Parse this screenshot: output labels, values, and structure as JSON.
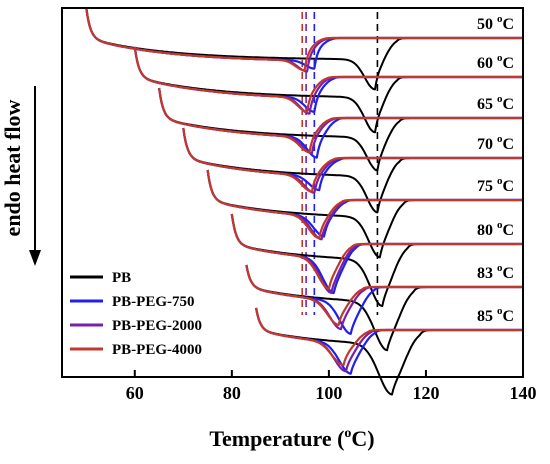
{
  "chart_data": {
    "type": "line",
    "title": "",
    "xlabel": "Temperature (°C)",
    "xlabel_parts": {
      "main": "Temperature (",
      "sup": "o",
      "tail": "C)"
    },
    "ylabel": "endo heat flow",
    "xlim": [
      45,
      140
    ],
    "xticks": [
      60,
      80,
      100,
      120,
      140
    ],
    "yticks_shown": false,
    "grid": false,
    "legend_placement": "bottom-left",
    "series": [
      {
        "name": "PB",
        "color": "#000000",
        "peak_temps": [
          109.5,
          109.5,
          110,
          110,
          110.5,
          111,
          112,
          113
        ]
      },
      {
        "name": "PB-PEG-750",
        "color": "#2020ee",
        "peak_temps": [
          97,
          97,
          97.5,
          98,
          99,
          101,
          104.5,
          104.5
        ]
      },
      {
        "name": "PB-PEG-2000",
        "color": "#7a1fa8",
        "peak_temps": [
          95.5,
          96,
          96.5,
          97,
          98.5,
          100.5,
          102.5,
          103.5
        ]
      },
      {
        "name": "PB-PEG-4000",
        "color": "#c0392b",
        "peak_temps": [
          95,
          95.5,
          96,
          96.5,
          98,
          100,
          102,
          103
        ]
      }
    ],
    "isothermal_temperatures": [
      {
        "value": 50,
        "label_num": "50",
        "sup": "o",
        "unit": "C",
        "start_x": 50
      },
      {
        "value": 60,
        "label_num": "60",
        "sup": "o",
        "unit": "C",
        "start_x": 60
      },
      {
        "value": 65,
        "label_num": "65",
        "sup": "o",
        "unit": "C",
        "start_x": 65
      },
      {
        "value": 70,
        "label_num": "70",
        "sup": "o",
        "unit": "C",
        "start_x": 70
      },
      {
        "value": 75,
        "label_num": "75",
        "sup": "o",
        "unit": "C",
        "start_x": 75
      },
      {
        "value": 80,
        "label_num": "80",
        "sup": "o",
        "unit": "C",
        "start_x": 80
      },
      {
        "value": 83,
        "label_num": "83",
        "sup": "o",
        "unit": "C",
        "start_x": 83
      },
      {
        "value": 85,
        "label_num": "85",
        "sup": "o",
        "unit": "C",
        "start_x": 85
      }
    ],
    "reference_lines": [
      {
        "x": 94.5,
        "color": "#c0392b",
        "style": "dashed"
      },
      {
        "x": 95.3,
        "color": "#7a1fa8",
        "style": "dashed"
      },
      {
        "x": 97,
        "color": "#2020ee",
        "style": "dashed"
      },
      {
        "x": 110,
        "color": "#000000",
        "style": "dashed"
      }
    ]
  }
}
